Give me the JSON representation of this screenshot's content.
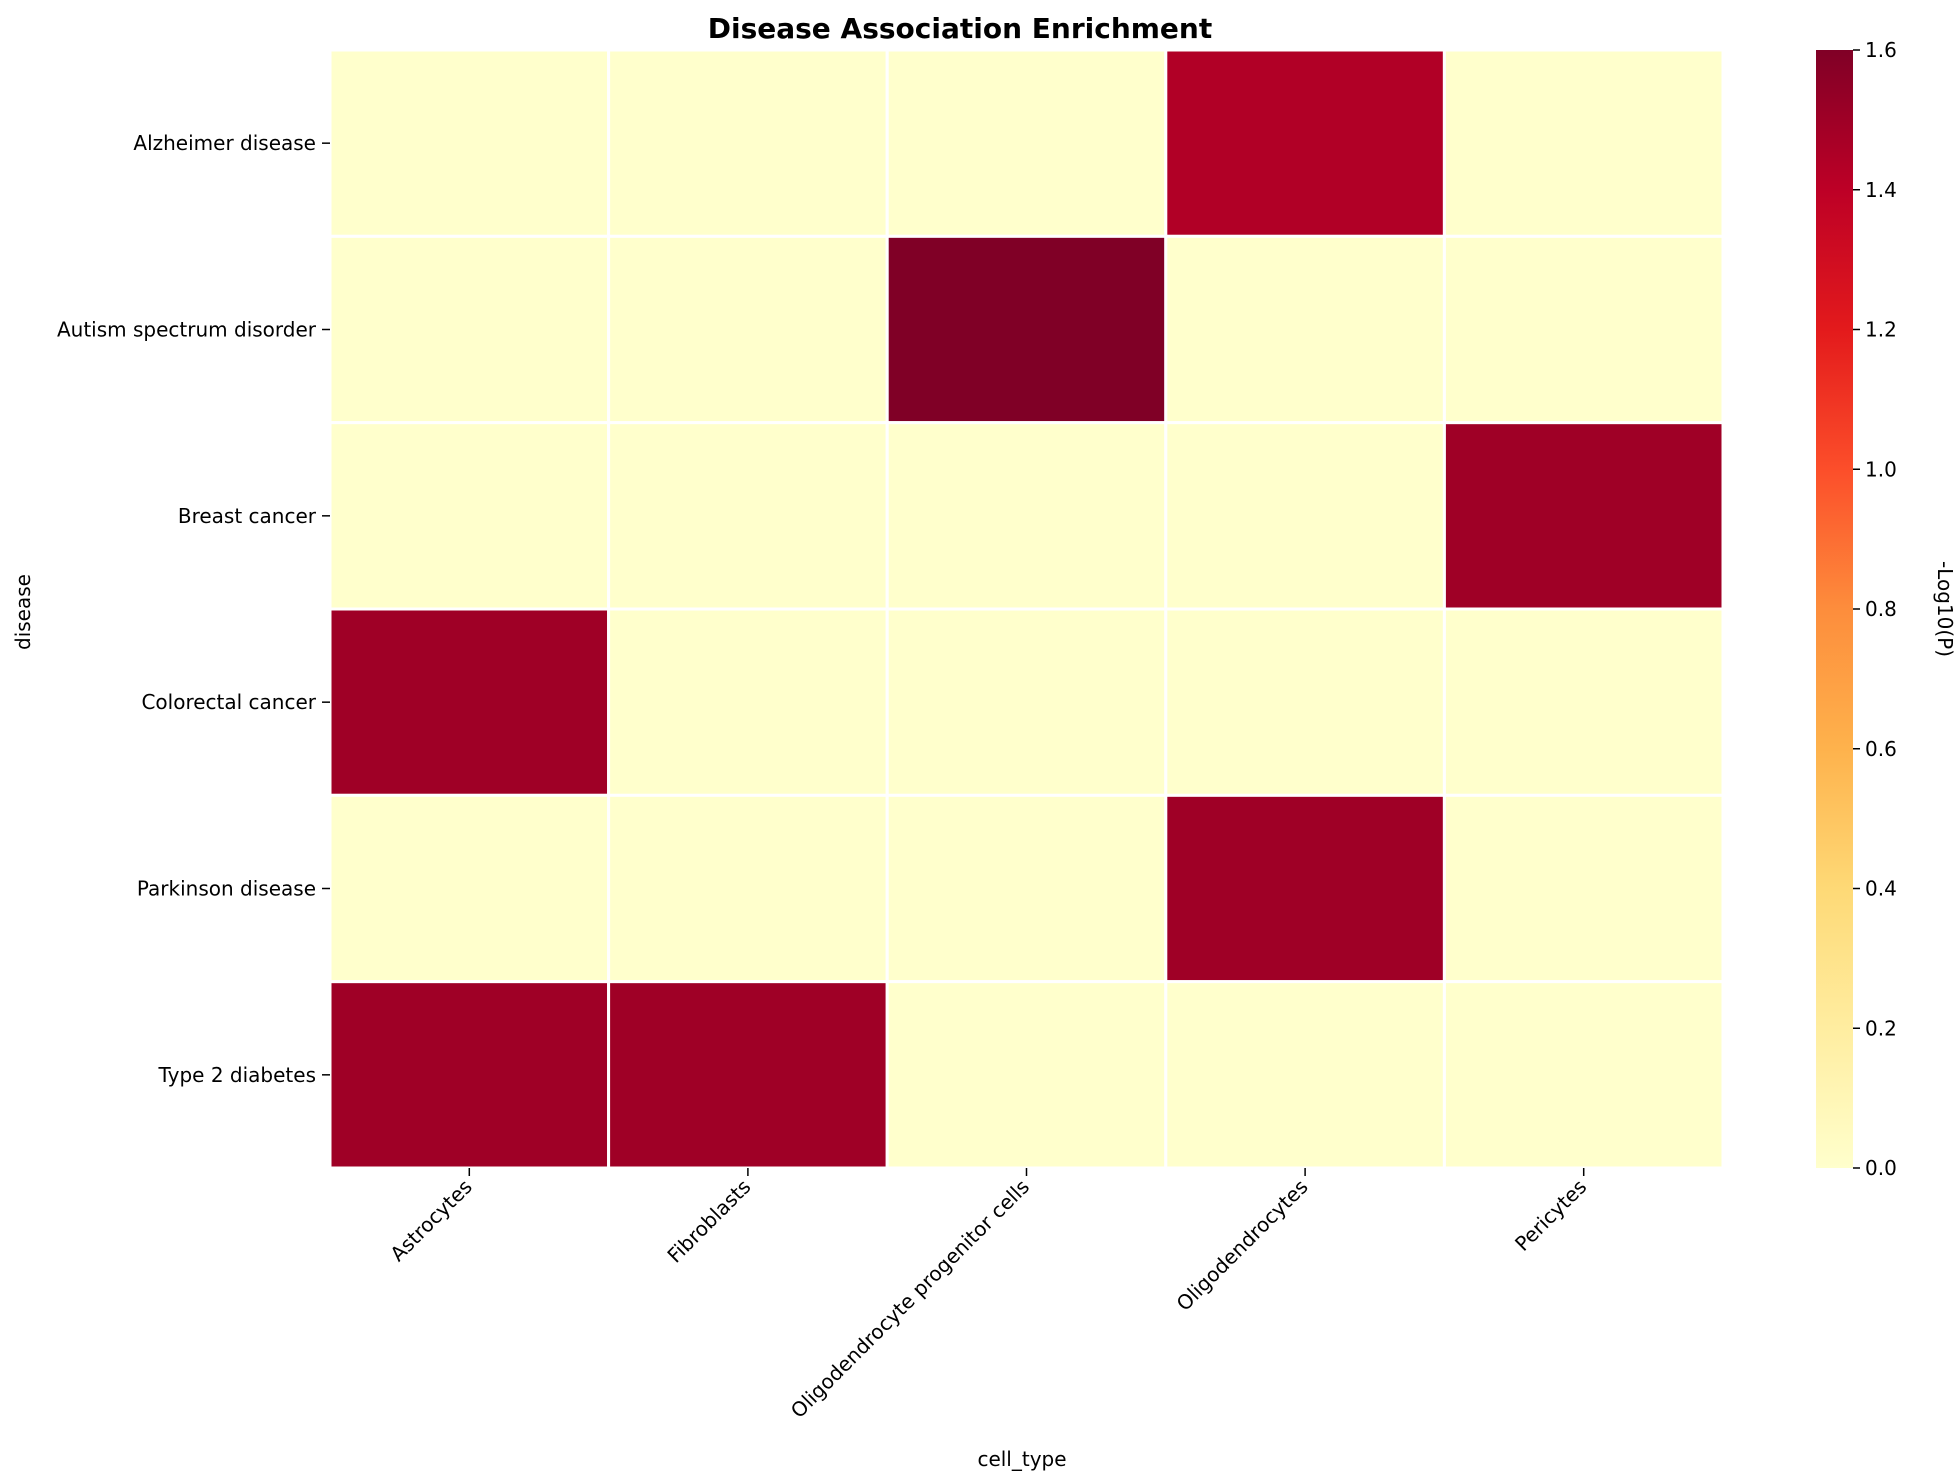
{
  "chart_data": {
    "type": "heatmap",
    "title": "Disease Association Enrichment",
    "xlabel": "cell_type",
    "ylabel": "disease",
    "colorbar_label": "-Log10(P)",
    "colormap": "YlOrRd",
    "colormap_stops": [
      "#ffffcc",
      "#ffeda0",
      "#fed976",
      "#feb24c",
      "#fd8d3c",
      "#fc4e2a",
      "#e31a1c",
      "#bd0026",
      "#800026"
    ],
    "vmin": 0,
    "vmax": 1.6,
    "colorbar_ticks": [
      "0.0",
      "0.2",
      "0.4",
      "0.6",
      "0.8",
      "1.0",
      "1.2",
      "1.4",
      "1.6"
    ],
    "x_categories": [
      "Astrocytes",
      "Fibroblasts",
      "Oligodendrocyte progenitor cells",
      "Oligodendrocytes",
      "Pericytes"
    ],
    "y_categories": [
      "Alzheimer disease",
      "Autism spectrum disorder",
      "Breast cancer",
      "Colorectal cancer",
      "Parkinson disease",
      "Type 2 diabetes"
    ],
    "values": [
      [
        0,
        0,
        0,
        1.44,
        0
      ],
      [
        0,
        0,
        1.6,
        0,
        0
      ],
      [
        0,
        0,
        0,
        0,
        1.5
      ],
      [
        1.5,
        0,
        0,
        0,
        0
      ],
      [
        0,
        0,
        0,
        1.5,
        0
      ],
      [
        1.5,
        1.5,
        0,
        0,
        0
      ]
    ]
  }
}
